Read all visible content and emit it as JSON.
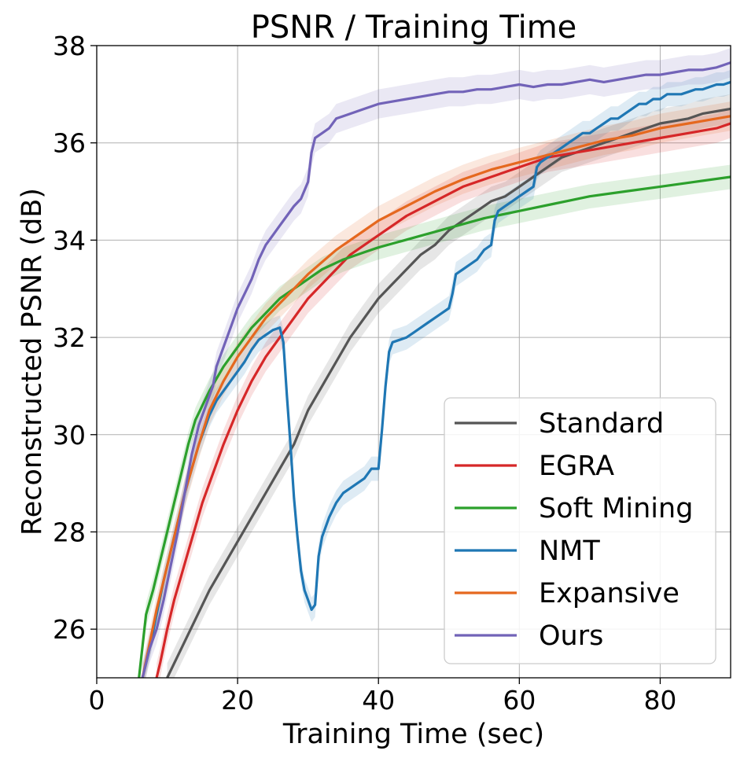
{
  "chart_data": {
    "type": "line",
    "title": "PSNR / Training Time",
    "xlabel": "Training Time (sec)",
    "ylabel": "Reconstructed PSNR (dB)",
    "xlim": [
      0,
      90
    ],
    "ylim": [
      25,
      38
    ],
    "xticks": [
      0,
      20,
      40,
      60,
      80
    ],
    "yticks": [
      26,
      28,
      30,
      32,
      34,
      36,
      38
    ],
    "grid": true,
    "legend_position": "lower-right",
    "series": [
      {
        "name": "Standard",
        "color": "#555555",
        "band": 0.3,
        "points": [
          [
            10,
            25.0
          ],
          [
            12,
            25.6
          ],
          [
            14,
            26.2
          ],
          [
            16,
            26.8
          ],
          [
            18,
            27.3
          ],
          [
            20,
            27.8
          ],
          [
            22,
            28.3
          ],
          [
            24,
            28.8
          ],
          [
            26,
            29.3
          ],
          [
            28,
            29.8
          ],
          [
            30,
            30.5
          ],
          [
            32,
            31.0
          ],
          [
            34,
            31.5
          ],
          [
            36,
            32.0
          ],
          [
            38,
            32.4
          ],
          [
            40,
            32.8
          ],
          [
            42,
            33.1
          ],
          [
            44,
            33.4
          ],
          [
            46,
            33.7
          ],
          [
            48,
            33.9
          ],
          [
            50,
            34.2
          ],
          [
            52,
            34.4
          ],
          [
            54,
            34.6
          ],
          [
            56,
            34.8
          ],
          [
            58,
            34.9
          ],
          [
            60,
            35.1
          ],
          [
            62,
            35.3
          ],
          [
            64,
            35.5
          ],
          [
            66,
            35.7
          ],
          [
            68,
            35.8
          ],
          [
            70,
            35.9
          ],
          [
            72,
            36.0
          ],
          [
            74,
            36.1
          ],
          [
            76,
            36.2
          ],
          [
            78,
            36.3
          ],
          [
            80,
            36.4
          ],
          [
            82,
            36.45
          ],
          [
            84,
            36.5
          ],
          [
            86,
            36.6
          ],
          [
            88,
            36.65
          ],
          [
            90,
            36.7
          ]
        ]
      },
      {
        "name": "EGRA",
        "color": "#d62728",
        "band": 0.3,
        "points": [
          [
            8.5,
            25.0
          ],
          [
            9,
            25.3
          ],
          [
            10,
            26.0
          ],
          [
            11,
            26.6
          ],
          [
            12,
            27.1
          ],
          [
            13,
            27.6
          ],
          [
            14,
            28.1
          ],
          [
            15,
            28.6
          ],
          [
            16,
            29.0
          ],
          [
            17,
            29.4
          ],
          [
            18,
            29.8
          ],
          [
            20,
            30.5
          ],
          [
            22,
            31.1
          ],
          [
            24,
            31.6
          ],
          [
            26,
            32.0
          ],
          [
            28,
            32.4
          ],
          [
            30,
            32.8
          ],
          [
            32,
            33.1
          ],
          [
            34,
            33.4
          ],
          [
            36,
            33.7
          ],
          [
            38,
            33.9
          ],
          [
            40,
            34.1
          ],
          [
            44,
            34.5
          ],
          [
            48,
            34.8
          ],
          [
            52,
            35.1
          ],
          [
            56,
            35.3
          ],
          [
            60,
            35.5
          ],
          [
            64,
            35.7
          ],
          [
            68,
            35.8
          ],
          [
            72,
            35.9
          ],
          [
            76,
            36.0
          ],
          [
            80,
            36.1
          ],
          [
            84,
            36.2
          ],
          [
            88,
            36.3
          ],
          [
            90,
            36.4
          ]
        ]
      },
      {
        "name": "Soft Mining",
        "color": "#2ca02c",
        "band": 0.25,
        "points": [
          [
            6,
            25.0
          ],
          [
            7,
            26.3
          ],
          [
            8,
            26.8
          ],
          [
            9,
            27.4
          ],
          [
            10,
            28.0
          ],
          [
            11,
            28.6
          ],
          [
            12,
            29.2
          ],
          [
            13,
            29.8
          ],
          [
            14,
            30.3
          ],
          [
            16,
            30.9
          ],
          [
            18,
            31.4
          ],
          [
            20,
            31.8
          ],
          [
            22,
            32.2
          ],
          [
            24,
            32.5
          ],
          [
            26,
            32.8
          ],
          [
            28,
            33.0
          ],
          [
            30,
            33.2
          ],
          [
            32,
            33.4
          ],
          [
            35,
            33.6
          ],
          [
            38,
            33.75
          ],
          [
            40,
            33.85
          ],
          [
            45,
            34.05
          ],
          [
            50,
            34.25
          ],
          [
            55,
            34.45
          ],
          [
            60,
            34.6
          ],
          [
            65,
            34.75
          ],
          [
            70,
            34.9
          ],
          [
            75,
            35.0
          ],
          [
            80,
            35.1
          ],
          [
            85,
            35.2
          ],
          [
            90,
            35.3
          ]
        ]
      },
      {
        "name": "NMT",
        "color": "#1f77b4",
        "band": 0.25,
        "points": [
          [
            6.5,
            25.0
          ],
          [
            7.5,
            25.6
          ],
          [
            8.5,
            26.3
          ],
          [
            9.5,
            27.0
          ],
          [
            10.5,
            27.6
          ],
          [
            11.5,
            28.2
          ],
          [
            12.5,
            28.8
          ],
          [
            13.5,
            29.3
          ],
          [
            14.5,
            29.8
          ],
          [
            16,
            30.4
          ],
          [
            17,
            30.7
          ],
          [
            18,
            30.9
          ],
          [
            19,
            31.1
          ],
          [
            20,
            31.3
          ],
          [
            21,
            31.5
          ],
          [
            22,
            31.75
          ],
          [
            23,
            31.95
          ],
          [
            24,
            32.05
          ],
          [
            25,
            32.15
          ],
          [
            26,
            32.2
          ],
          [
            26.5,
            31.9
          ],
          [
            27,
            30.8
          ],
          [
            27.5,
            29.8
          ],
          [
            28,
            28.7
          ],
          [
            28.5,
            27.9
          ],
          [
            29,
            27.2
          ],
          [
            29.5,
            26.8
          ],
          [
            30,
            26.6
          ],
          [
            30.5,
            26.4
          ],
          [
            31,
            26.5
          ],
          [
            31.5,
            27.5
          ],
          [
            32,
            27.9
          ],
          [
            33,
            28.3
          ],
          [
            34,
            28.6
          ],
          [
            35,
            28.8
          ],
          [
            36,
            28.9
          ],
          [
            37,
            29.0
          ],
          [
            38,
            29.1
          ],
          [
            39,
            29.3
          ],
          [
            40,
            29.3
          ],
          [
            40.5,
            30.1
          ],
          [
            41,
            31.0
          ],
          [
            41.5,
            31.7
          ],
          [
            42,
            31.9
          ],
          [
            43,
            31.95
          ],
          [
            44,
            32.0
          ],
          [
            45,
            32.1
          ],
          [
            46,
            32.2
          ],
          [
            47,
            32.3
          ],
          [
            48,
            32.4
          ],
          [
            49,
            32.5
          ],
          [
            50,
            32.6
          ],
          [
            50.5,
            32.9
          ],
          [
            51,
            33.3
          ],
          [
            52,
            33.4
          ],
          [
            53,
            33.5
          ],
          [
            54,
            33.6
          ],
          [
            55,
            33.8
          ],
          [
            56,
            33.9
          ],
          [
            56.5,
            34.4
          ],
          [
            57,
            34.6
          ],
          [
            58,
            34.7
          ],
          [
            59,
            34.8
          ],
          [
            60,
            34.9
          ],
          [
            61,
            35.0
          ],
          [
            62,
            35.1
          ],
          [
            62.5,
            35.5
          ],
          [
            63,
            35.6
          ],
          [
            64,
            35.7
          ],
          [
            65,
            35.8
          ],
          [
            66,
            35.9
          ],
          [
            67,
            36.0
          ],
          [
            68,
            36.1
          ],
          [
            69,
            36.2
          ],
          [
            70,
            36.2
          ],
          [
            71,
            36.3
          ],
          [
            72,
            36.4
          ],
          [
            73,
            36.5
          ],
          [
            74,
            36.5
          ],
          [
            75,
            36.6
          ],
          [
            76,
            36.7
          ],
          [
            77,
            36.8
          ],
          [
            78,
            36.8
          ],
          [
            79,
            36.9
          ],
          [
            80,
            36.9
          ],
          [
            81,
            37.0
          ],
          [
            82,
            37.0
          ],
          [
            83,
            37.0
          ],
          [
            84,
            37.05
          ],
          [
            85,
            37.1
          ],
          [
            86,
            37.1
          ],
          [
            87,
            37.15
          ],
          [
            88,
            37.2
          ],
          [
            89,
            37.2
          ],
          [
            90,
            37.25
          ]
        ]
      },
      {
        "name": "Expansive",
        "color": "#e5681f",
        "band": 0.3,
        "points": [
          [
            6.5,
            25.0
          ],
          [
            7.5,
            25.7
          ],
          [
            8.5,
            26.4
          ],
          [
            9.5,
            27.0
          ],
          [
            10.5,
            27.6
          ],
          [
            11.5,
            28.2
          ],
          [
            12.5,
            28.8
          ],
          [
            13.5,
            29.3
          ],
          [
            14.5,
            29.8
          ],
          [
            16,
            30.5
          ],
          [
            18,
            31.1
          ],
          [
            20,
            31.6
          ],
          [
            22,
            32.0
          ],
          [
            24,
            32.4
          ],
          [
            26,
            32.7
          ],
          [
            28,
            33.0
          ],
          [
            30,
            33.3
          ],
          [
            32,
            33.55
          ],
          [
            34,
            33.8
          ],
          [
            36,
            34.0
          ],
          [
            38,
            34.2
          ],
          [
            40,
            34.4
          ],
          [
            44,
            34.7
          ],
          [
            48,
            35.0
          ],
          [
            52,
            35.25
          ],
          [
            56,
            35.45
          ],
          [
            60,
            35.6
          ],
          [
            64,
            35.75
          ],
          [
            68,
            35.9
          ],
          [
            72,
            36.05
          ],
          [
            76,
            36.15
          ],
          [
            80,
            36.3
          ],
          [
            84,
            36.4
          ],
          [
            88,
            36.5
          ],
          [
            90,
            36.55
          ]
        ]
      },
      {
        "name": "Ours",
        "color": "#7263b8",
        "band": 0.3,
        "points": [
          [
            6.5,
            25.0
          ],
          [
            7.5,
            25.6
          ],
          [
            8.5,
            26.0
          ],
          [
            9.5,
            26.6
          ],
          [
            10.5,
            27.3
          ],
          [
            11.5,
            28.0
          ],
          [
            12.5,
            28.8
          ],
          [
            13.5,
            29.6
          ],
          [
            14.5,
            30.2
          ],
          [
            15.5,
            30.6
          ],
          [
            16.5,
            31.0
          ],
          [
            17,
            31.4
          ],
          [
            18,
            31.8
          ],
          [
            19,
            32.2
          ],
          [
            20,
            32.6
          ],
          [
            21,
            32.9
          ],
          [
            22,
            33.2
          ],
          [
            23,
            33.6
          ],
          [
            24,
            33.9
          ],
          [
            25,
            34.1
          ],
          [
            26,
            34.3
          ],
          [
            27,
            34.5
          ],
          [
            28,
            34.7
          ],
          [
            29,
            34.85
          ],
          [
            30,
            35.2
          ],
          [
            30.5,
            35.8
          ],
          [
            31,
            36.1
          ],
          [
            32,
            36.2
          ],
          [
            33,
            36.3
          ],
          [
            34,
            36.5
          ],
          [
            35,
            36.55
          ],
          [
            36,
            36.6
          ],
          [
            38,
            36.7
          ],
          [
            40,
            36.8
          ],
          [
            42,
            36.85
          ],
          [
            44,
            36.9
          ],
          [
            46,
            36.95
          ],
          [
            48,
            37.0
          ],
          [
            50,
            37.05
          ],
          [
            52,
            37.05
          ],
          [
            54,
            37.1
          ],
          [
            56,
            37.1
          ],
          [
            58,
            37.15
          ],
          [
            60,
            37.2
          ],
          [
            62,
            37.15
          ],
          [
            64,
            37.2
          ],
          [
            66,
            37.2
          ],
          [
            68,
            37.25
          ],
          [
            70,
            37.3
          ],
          [
            72,
            37.25
          ],
          [
            74,
            37.3
          ],
          [
            76,
            37.35
          ],
          [
            78,
            37.4
          ],
          [
            80,
            37.4
          ],
          [
            82,
            37.45
          ],
          [
            84,
            37.5
          ],
          [
            86,
            37.5
          ],
          [
            88,
            37.55
          ],
          [
            89,
            37.6
          ],
          [
            90,
            37.65
          ]
        ]
      }
    ]
  }
}
